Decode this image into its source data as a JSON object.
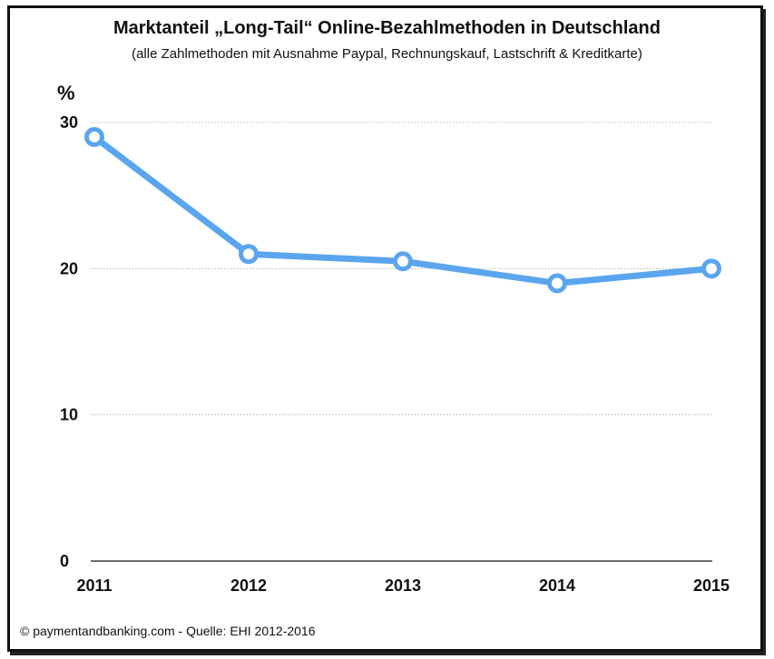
{
  "chart_data": {
    "type": "line",
    "title": "Marktanteil „Long-Tail“ Online-Bezahlmethoden in Deutschland",
    "subtitle": "(alle Zahlmethoden mit Ausnahme Paypal, Rechnungskauf, Lastschrift & Kreditkarte)",
    "ylabel": "%",
    "xlabel": "",
    "categories": [
      "2011",
      "2012",
      "2013",
      "2014",
      "2015"
    ],
    "series": [
      {
        "values": [
          29,
          21,
          20.5,
          19,
          20
        ]
      }
    ],
    "ylim": [
      0,
      30
    ],
    "yticks": [
      "0",
      "10",
      "20",
      "30"
    ],
    "grid": true,
    "line_color": "#5aa5ee",
    "footer": "© paymentandbanking.com - Quelle: EHI 2012-2016"
  }
}
